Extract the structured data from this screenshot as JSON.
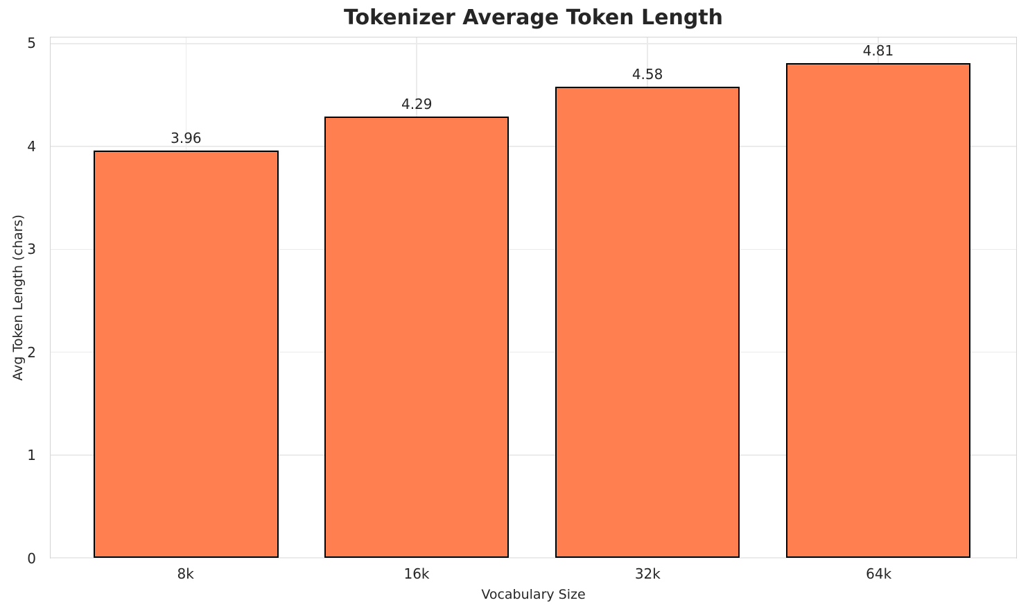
{
  "chart_data": {
    "type": "bar",
    "title": "Tokenizer Average Token Length",
    "xlabel": "Vocabulary Size",
    "ylabel": "Avg Token Length (chars)",
    "categories": [
      "8k",
      "16k",
      "32k",
      "64k"
    ],
    "values": [
      3.96,
      4.29,
      4.58,
      4.81
    ],
    "value_labels": [
      "3.96",
      "4.29",
      "4.58",
      "4.81"
    ],
    "yticks": [
      0,
      1,
      2,
      3,
      4,
      5
    ],
    "ytick_labels": [
      "0",
      "1",
      "2",
      "3",
      "4",
      "5"
    ],
    "ylim": [
      0,
      5.06
    ],
    "grid": true,
    "legend": "none",
    "bar_color": "#FF7F50",
    "bar_edge_color": "#000000",
    "grid_color": "#ebebeb",
    "spine_color": "#d3d3d3",
    "text_color": "#262626"
  }
}
